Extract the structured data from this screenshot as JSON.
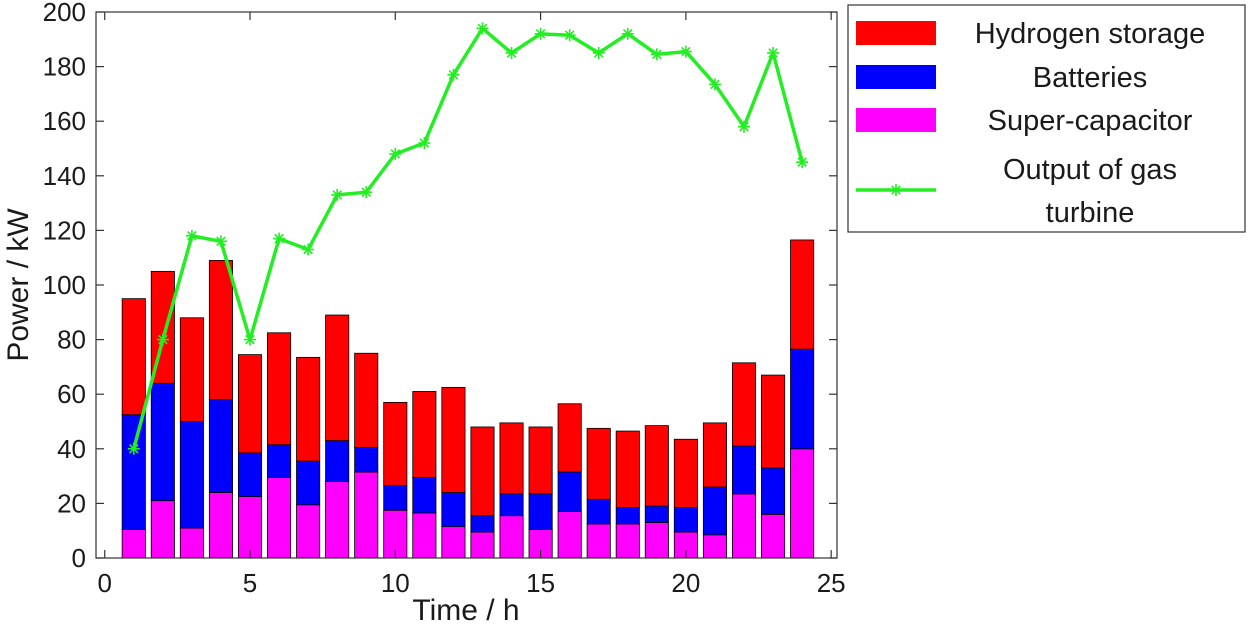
{
  "chart_data": {
    "type": "bar",
    "stacked": true,
    "xlabel": "Time / h",
    "ylabel": "Power / kW",
    "xlim": [
      -0.3,
      25.2
    ],
    "ylim": [
      0,
      200
    ],
    "xticks": [
      0,
      5,
      10,
      15,
      20,
      25
    ],
    "yticks": [
      0,
      20,
      40,
      60,
      80,
      100,
      120,
      140,
      160,
      180,
      200
    ],
    "grid": false,
    "legend_position": "outside-right",
    "x": [
      1,
      2,
      3,
      4,
      5,
      6,
      7,
      8,
      9,
      10,
      11,
      12,
      13,
      14,
      15,
      16,
      17,
      18,
      19,
      20,
      21,
      22,
      23,
      24
    ],
    "series": [
      {
        "name": "Super-capacitor",
        "kind": "bar",
        "color": "#ff00ff",
        "values": [
          10.5,
          21,
          11,
          24,
          22.5,
          29.5,
          19.5,
          28,
          31.5,
          17.5,
          16.5,
          11.5,
          9.5,
          15.5,
          10.5,
          17,
          12.5,
          12.5,
          13,
          9.5,
          8.5,
          23.5,
          16,
          40
        ]
      },
      {
        "name": "Batteries",
        "kind": "bar",
        "color": "#0000ff",
        "values": [
          42,
          43,
          39,
          34,
          16,
          12,
          16,
          15,
          9,
          9,
          13,
          12.5,
          6,
          8,
          13,
          14.5,
          9,
          6,
          6,
          9,
          17.5,
          17.5,
          17,
          36.5
        ]
      },
      {
        "name": "Hydrogen storage",
        "kind": "bar",
        "color": "#ff0000",
        "values": [
          42.5,
          41,
          38,
          51,
          36,
          41,
          38,
          46,
          34.5,
          30.5,
          31.5,
          38.5,
          32.5,
          26,
          24.5,
          25,
          26,
          28,
          29.5,
          25,
          23.5,
          30.5,
          34,
          40
        ]
      },
      {
        "name": "Output of gas turbine",
        "kind": "line",
        "color": "#22ee22",
        "marker": "asterisk",
        "values": [
          40,
          80,
          118,
          116,
          80,
          117,
          113,
          133,
          134,
          148,
          152,
          177,
          194,
          185,
          192,
          191.5,
          185,
          192,
          184.5,
          185.5,
          173.5,
          158,
          185,
          145
        ]
      }
    ],
    "legend": [
      {
        "label": "Hydrogen storage",
        "swatch": "bar",
        "color": "#ff0000"
      },
      {
        "label": "Batteries",
        "swatch": "bar",
        "color": "#0000ff"
      },
      {
        "label": "Super-capacitor",
        "swatch": "bar",
        "color": "#ff00ff"
      },
      {
        "label_lines": [
          "Output of gas",
          "turbine"
        ],
        "swatch": "line",
        "color": "#22ee22"
      }
    ]
  }
}
